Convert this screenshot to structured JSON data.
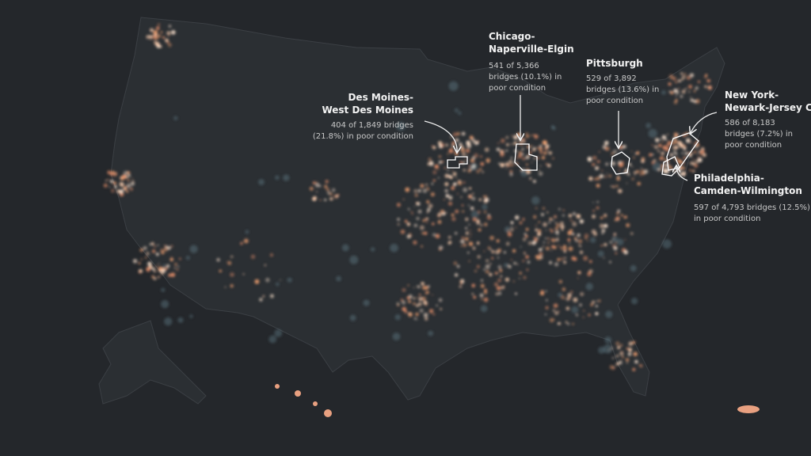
{
  "annotations": [
    {
      "title": [
        "Des Moines-",
        "West Des Moines"
      ],
      "body": [
        "404 of 1,849 bridges",
        "(21.8%) in poor condition"
      ]
    },
    {
      "title": [
        "Chicago-",
        "Naperville-Elgin"
      ],
      "body": [
        "541 of 5,366",
        "bridges (10.1%) in",
        "poor condition"
      ]
    },
    {
      "title": [
        "Pittsburgh"
      ],
      "body": [
        "529 of 3,892",
        "bridges (13.6%) in",
        "poor condition"
      ]
    },
    {
      "title": [
        "New York-",
        "Newark-Jersey City"
      ],
      "body": [
        "586 of 8,183",
        "bridges (7.2%) in",
        "poor condition"
      ]
    },
    {
      "title": [
        "Philadelphia-",
        "Camden-Wilmington"
      ],
      "body": [
        "597 of 4,793 bridges (12.5%)",
        "in poor condition"
      ]
    }
  ]
}
